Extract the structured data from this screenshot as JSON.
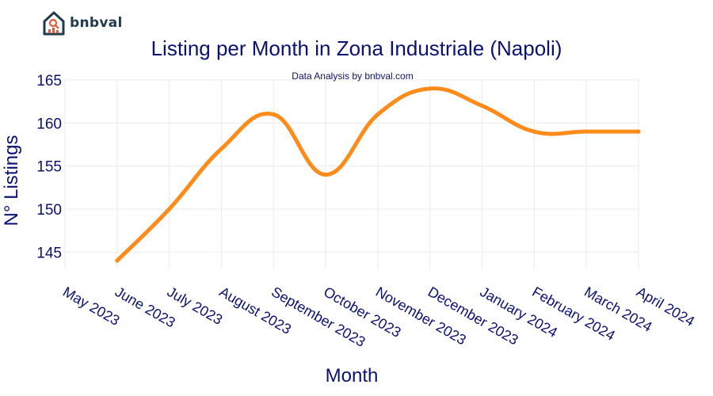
{
  "logo": {
    "text": "bnbval",
    "icon": "house-chart-icon"
  },
  "colors": {
    "line": "#ff8c1a",
    "text": "#0a1172",
    "grid": "#ebebeb",
    "logo_house": "#1f3b4d",
    "logo_accent": "#e05a3c"
  },
  "chart_data": {
    "type": "line",
    "title": "Listing per Month in Zona Industriale (Napoli)",
    "subtitle": "Data Analysis by bnbval.com",
    "xlabel": "Month",
    "ylabel": "N° Listings",
    "ylim": [
      143,
      165
    ],
    "yticks": [
      145,
      150,
      155,
      160,
      165
    ],
    "grid": true,
    "categories": [
      "May 2023",
      "June 2023",
      "July 2023",
      "August 2023",
      "September 2023",
      "October 2023",
      "November 2023",
      "December 2023",
      "January 2024",
      "February 2024",
      "March 2024",
      "April 2024"
    ],
    "series": [
      {
        "x": [
          "June 2023",
          "July 2023",
          "August 2023",
          "September 2023",
          "October 2023",
          "November 2023",
          "December 2023",
          "January 2024",
          "February 2024",
          "March 2024",
          "April 2024"
        ],
        "values": [
          144,
          150,
          157,
          161,
          154,
          161,
          164,
          162,
          159,
          159,
          159
        ]
      }
    ]
  }
}
